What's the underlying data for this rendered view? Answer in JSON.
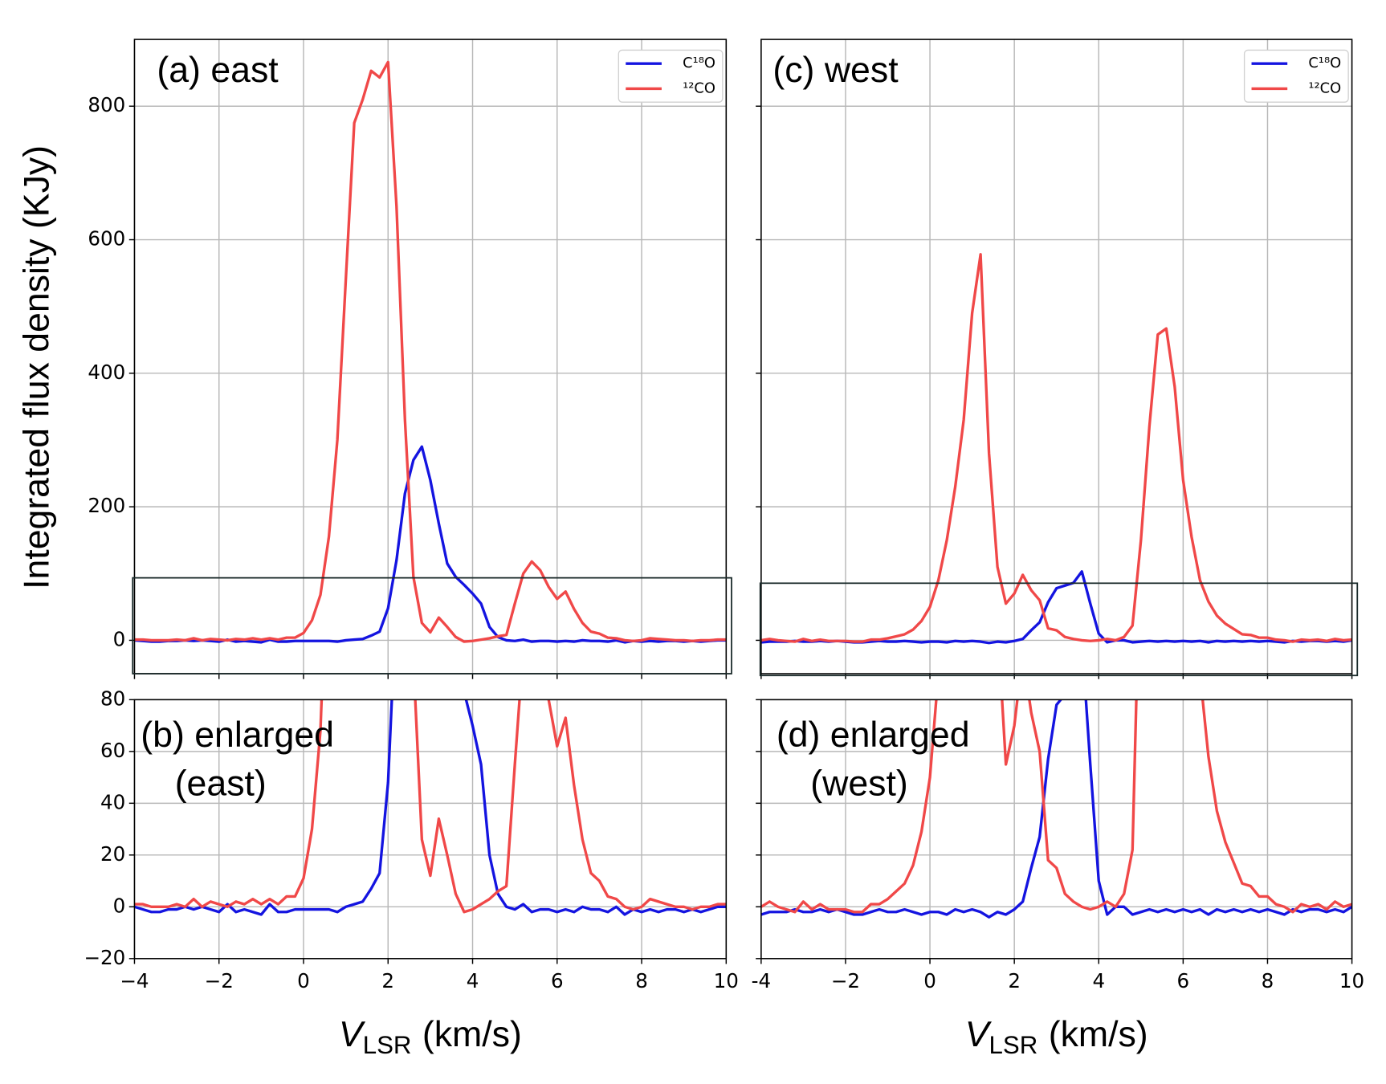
{
  "chart_data": [
    {
      "type": "line",
      "ylabel": "Integrated flux density (KJy)",
      "xlabel": {
        "symbol": "V",
        "subscript": "LSR",
        "unit": "(km/s)"
      },
      "xlim": [
        -4,
        10
      ],
      "xticks": [
        {
          "value": -4,
          "label": "−4"
        },
        {
          "value": -2,
          "label": "−2"
        },
        0,
        2,
        4,
        6,
        8,
        10
      ],
      "grid": true,
      "legend": "upper right",
      "x": [
        -4,
        -3.8,
        -3.6,
        -3.4,
        -3.2,
        -3,
        -2.8,
        -2.6,
        -2.4,
        -2.2,
        -2,
        -1.8,
        -1.6,
        -1.4,
        -1.2,
        -1,
        -0.8,
        -0.6,
        -0.4,
        -0.2,
        0,
        0.2,
        0.4,
        0.6,
        0.8,
        1,
        1.2,
        1.4,
        1.6,
        1.8,
        2,
        2.2,
        2.4,
        2.6,
        2.8,
        3,
        3.2,
        3.4,
        3.6,
        3.8,
        4,
        4.2,
        4.4,
        4.6,
        4.8,
        5,
        5.2,
        5.4,
        5.6,
        5.8,
        6,
        6.2,
        6.4,
        6.6,
        6.8,
        7,
        7.2,
        7.4,
        7.6,
        7.8,
        8,
        8.2,
        8.4,
        8.6,
        8.8,
        9,
        9.2,
        9.4,
        9.6,
        9.8,
        10
      ],
      "series": [
        {
          "name": "C¹⁸O",
          "color": "#1414e0",
          "values": [
            0,
            -1,
            -2,
            -2,
            -1,
            -1,
            0,
            -1,
            0,
            -1,
            -2,
            1,
            -2,
            -1,
            -2,
            -3,
            1,
            -2,
            -2,
            -1,
            -1,
            -1,
            -1,
            -1,
            -2,
            0,
            1,
            2,
            7,
            13,
            48,
            120,
            220,
            270,
            290,
            240,
            175,
            115,
            95,
            83,
            70,
            55,
            20,
            5,
            0,
            -1,
            1,
            -2,
            -1,
            -1,
            -2,
            -1,
            -2,
            0,
            -1,
            -1,
            -2,
            0,
            -3,
            -1,
            -2,
            -1,
            -2,
            -1,
            -1,
            -2,
            -1,
            -2,
            -1,
            0,
            0
          ]
        },
        {
          "name": "¹²CO",
          "color": "#f04848",
          "values": [
            1,
            1,
            0,
            0,
            0,
            1,
            0,
            3,
            0,
            2,
            1,
            0,
            2,
            1,
            3,
            1,
            3,
            1,
            4,
            4,
            11,
            30,
            68,
            155,
            300,
            540,
            775,
            810,
            853,
            843,
            866,
            650,
            330,
            95,
            26,
            12,
            34,
            20,
            5,
            -2,
            -1,
            1,
            3,
            6,
            8,
            55,
            100,
            118,
            105,
            80,
            62,
            73,
            47,
            26,
            13,
            10,
            4,
            3,
            0,
            -1,
            0,
            3,
            2,
            1,
            0,
            0,
            -1,
            0,
            0,
            1,
            1
          ]
        }
      ],
      "panels": [
        {
          "label": [
            "(a) east"
          ],
          "ylim": [
            -50,
            900
          ],
          "yticks": [
            0,
            200,
            400,
            600,
            800
          ]
        },
        {
          "label": [
            "(b) enlarged",
            "(east)"
          ],
          "ylim": [
            -20,
            80
          ],
          "yticks": [
            {
              "value": -20,
              "label": "−20"
            },
            0,
            20,
            40,
            60,
            80
          ]
        }
      ]
    },
    {
      "type": "line",
      "xlabel": {
        "symbol": "V",
        "subscript": "LSR",
        "unit": "(km/s)"
      },
      "xlim": [
        -4,
        10
      ],
      "xticks": [
        -4,
        {
          "value": -2,
          "label": "−2"
        },
        0,
        2,
        4,
        6,
        8,
        10
      ],
      "grid": true,
      "legend": "upper right",
      "ytick_labels": false,
      "x": [
        -4,
        -3.8,
        -3.6,
        -3.4,
        -3.2,
        -3,
        -2.8,
        -2.6,
        -2.4,
        -2.2,
        -2,
        -1.8,
        -1.6,
        -1.4,
        -1.2,
        -1,
        -0.8,
        -0.6,
        -0.4,
        -0.2,
        0,
        0.2,
        0.4,
        0.6,
        0.8,
        1,
        1.2,
        1.4,
        1.6,
        1.8,
        2,
        2.2,
        2.4,
        2.6,
        2.8,
        3,
        3.2,
        3.4,
        3.6,
        3.8,
        4,
        4.2,
        4.4,
        4.6,
        4.8,
        5,
        5.2,
        5.4,
        5.6,
        5.8,
        6,
        6.2,
        6.4,
        6.6,
        6.8,
        7,
        7.2,
        7.4,
        7.6,
        7.8,
        8,
        8.2,
        8.4,
        8.6,
        8.8,
        9,
        9.2,
        9.4,
        9.6,
        9.8,
        10
      ],
      "series": [
        {
          "name": "C¹⁸O",
          "color": "#1414e0",
          "values": [
            -3,
            -2,
            -2,
            -2,
            -1,
            -2,
            -2,
            -1,
            -2,
            -1,
            -2,
            -3,
            -3,
            -2,
            -1,
            -2,
            -2,
            -1,
            -2,
            -3,
            -2,
            -2,
            -3,
            -1,
            -2,
            -1,
            -2,
            -4,
            -2,
            -3,
            -1,
            2,
            15,
            27,
            57,
            78,
            82,
            86,
            103,
            55,
            10,
            -3,
            0,
            0,
            -3,
            -2,
            -1,
            -2,
            -1,
            -2,
            -1,
            -2,
            -1,
            -3,
            -1,
            -2,
            -1,
            -2,
            -1,
            -2,
            -1,
            -2,
            -3,
            -1,
            -2,
            -1,
            -1,
            -2,
            -1,
            -2,
            0
          ]
        },
        {
          "name": "¹²CO",
          "color": "#f04848",
          "values": [
            0,
            2,
            0,
            -1,
            -2,
            2,
            -1,
            1,
            -1,
            -1,
            -1,
            -2,
            -2,
            1,
            1,
            3,
            6,
            9,
            16,
            29,
            50,
            90,
            150,
            230,
            330,
            490,
            578,
            280,
            110,
            55,
            70,
            98,
            75,
            60,
            18,
            15,
            5,
            2,
            0,
            -1,
            0,
            2,
            0,
            5,
            22,
            150,
            320,
            458,
            467,
            380,
            240,
            155,
            90,
            58,
            37,
            25,
            17,
            9,
            8,
            4,
            4,
            1,
            0,
            -2,
            1,
            0,
            1,
            -1,
            2,
            0,
            1
          ]
        }
      ],
      "panels": [
        {
          "label": [
            "(c) west"
          ],
          "ylim": [
            -50,
            900
          ],
          "yticks": [
            0,
            200,
            400,
            600,
            800
          ]
        },
        {
          "label": [
            "(d) enlarged",
            "(west)"
          ],
          "ylim": [
            -20,
            80
          ],
          "yticks": [
            {
              "value": -20,
              "label": "−20"
            },
            0,
            20,
            40,
            60,
            80
          ]
        }
      ]
    }
  ]
}
